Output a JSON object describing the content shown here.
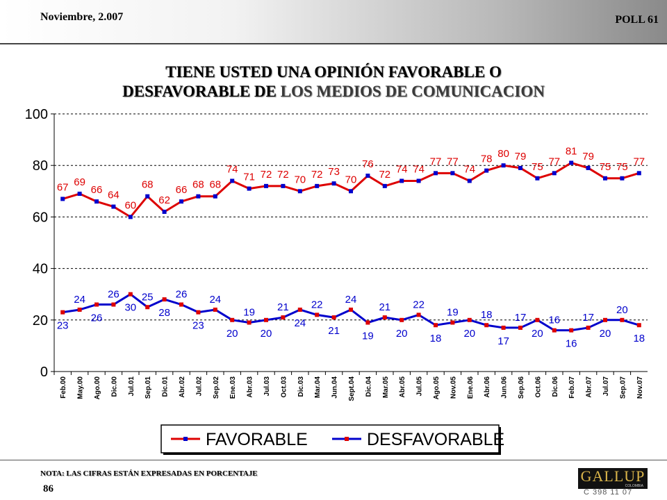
{
  "header": {
    "date": "Noviembre, 2.007",
    "poll": "POLL 61"
  },
  "footer": {
    "note": "NOTA: LAS CIFRAS ESTÁN EXPRESADAS EN PORCENTAJE",
    "page_number": "86",
    "logo_text": "GALLUP",
    "logo_sub": "COLOMBIA",
    "code": "C 398 11 07"
  },
  "chart_data": {
    "type": "line",
    "title_line1": "TIENE USTED UNA OPINIÓN FAVORABLE O",
    "title_line2_a": "DESFAVORABLE DE ",
    "title_line2_b": "LOS MEDIOS DE COMUNICACION",
    "xlabel": "",
    "ylabel": "",
    "ylim": [
      0,
      100
    ],
    "yticks": [
      0,
      20,
      40,
      60,
      80,
      100
    ],
    "grid": true,
    "legend_position": "bottom",
    "categories": [
      "Feb.00",
      "May.00",
      "Ago.00",
      "Dic.00",
      "Jul.01",
      "Sep.01",
      "Dic.01",
      "Abr.02",
      "Jul.02",
      "Sep.02",
      "Ene.03",
      "Abr.03",
      "Jul.03",
      "Oct.03",
      "Dic.03",
      "Mar.04",
      "Jun.04",
      "Sept.04",
      "Dic.04",
      "Mar.05",
      "Abr.05",
      "Jul.05",
      "Ago.05",
      "Nov.05",
      "Ene.06",
      "Abr.06",
      "Jun.06",
      "Sep.06",
      "Oct.06",
      "Dic.06",
      "Feb.07",
      "Abr.07",
      "Jul.07",
      "Sep.07",
      "Nov.07"
    ],
    "series": [
      {
        "name": "FAVORABLE",
        "color": "#dd0000",
        "marker_color": "#0000cc",
        "values": [
          67,
          69,
          66,
          64,
          60,
          68,
          62,
          66,
          68,
          68,
          74,
          71,
          72,
          72,
          70,
          72,
          73,
          70,
          76,
          72,
          74,
          74,
          77,
          77,
          74,
          78,
          80,
          79,
          75,
          77,
          81,
          79,
          75,
          75,
          77
        ]
      },
      {
        "name": "DESFAVORABLE",
        "color": "#0000cc",
        "marker_color": "#dd0000",
        "values": [
          23,
          24,
          26,
          26,
          30,
          25,
          28,
          26,
          23,
          24,
          20,
          19,
          20,
          21,
          24,
          22,
          21,
          24,
          19,
          21,
          20,
          22,
          18,
          19,
          20,
          18,
          17,
          17,
          20,
          16,
          16,
          17,
          20,
          20,
          18
        ]
      }
    ]
  }
}
